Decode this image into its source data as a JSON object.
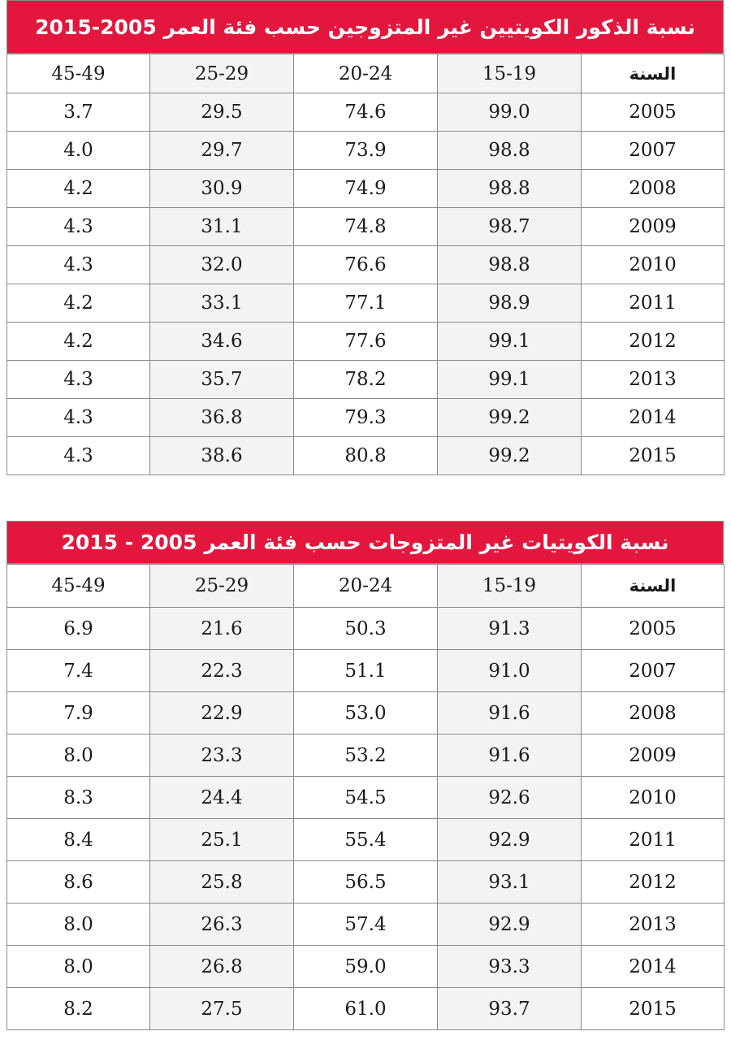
{
  "tables": [
    {
      "title": "نسبة الذكور الكويتيين غير المتزوجين حسب فئة العمر 2005-2015",
      "headers": [
        "45-49",
        "25-29",
        "20-24",
        "15-19",
        "السنة"
      ],
      "rows": [
        [
          "3.7",
          "29.5",
          "74.6",
          "99.0",
          "2005"
        ],
        [
          "4.0",
          "29.7",
          "73.9",
          "98.8",
          "2007"
        ],
        [
          "4.2",
          "30.9",
          "74.9",
          "98.8",
          "2008"
        ],
        [
          "4.3",
          "31.1",
          "74.8",
          "98.7",
          "2009"
        ],
        [
          "4.3",
          "32.0",
          "76.6",
          "98.8",
          "2010"
        ],
        [
          "4.2",
          "33.1",
          "77.1",
          "98.9",
          "2011"
        ],
        [
          "4.2",
          "34.6",
          "77.6",
          "99.1",
          "2012"
        ],
        [
          "4.3",
          "35.7",
          "78.2",
          "99.1",
          "2013"
        ],
        [
          "4.3",
          "36.8",
          "79.3",
          "99.2",
          "2014"
        ],
        [
          "4.3",
          "38.6",
          "80.8",
          "99.2",
          "2015"
        ]
      ]
    },
    {
      "title": "نسبة الكويتيات غير المتزوجات حسب فئة العمر 2005 - 2015",
      "headers": [
        "45-49",
        "25-29",
        "20-24",
        "15-19",
        "السنة"
      ],
      "rows": [
        [
          "6.9",
          "21.6",
          "50.3",
          "91.3",
          "2005"
        ],
        [
          "7.4",
          "22.3",
          "51.1",
          "91.0",
          "2007"
        ],
        [
          "7.9",
          "22.9",
          "53.0",
          "91.6",
          "2008"
        ],
        [
          "8.0",
          "23.3",
          "53.2",
          "91.6",
          "2009"
        ],
        [
          "8.3",
          "24.4",
          "54.5",
          "92.6",
          "2010"
        ],
        [
          "8.4",
          "25.1",
          "55.4",
          "92.9",
          "2011"
        ],
        [
          "8.6",
          "25.8",
          "56.5",
          "93.1",
          "2012"
        ],
        [
          "8.0",
          "26.3",
          "57.4",
          "92.9",
          "2013"
        ],
        [
          "8.0",
          "26.8",
          "59.0",
          "93.3",
          "2014"
        ],
        [
          "8.2",
          "27.5",
          "61.0",
          "93.7",
          "2015"
        ]
      ]
    }
  ],
  "colors": {
    "title_background": "#e3173e",
    "title_text": "#ffffff",
    "shaded_column": "#f3f3f3",
    "border": "#8a8a8a"
  }
}
